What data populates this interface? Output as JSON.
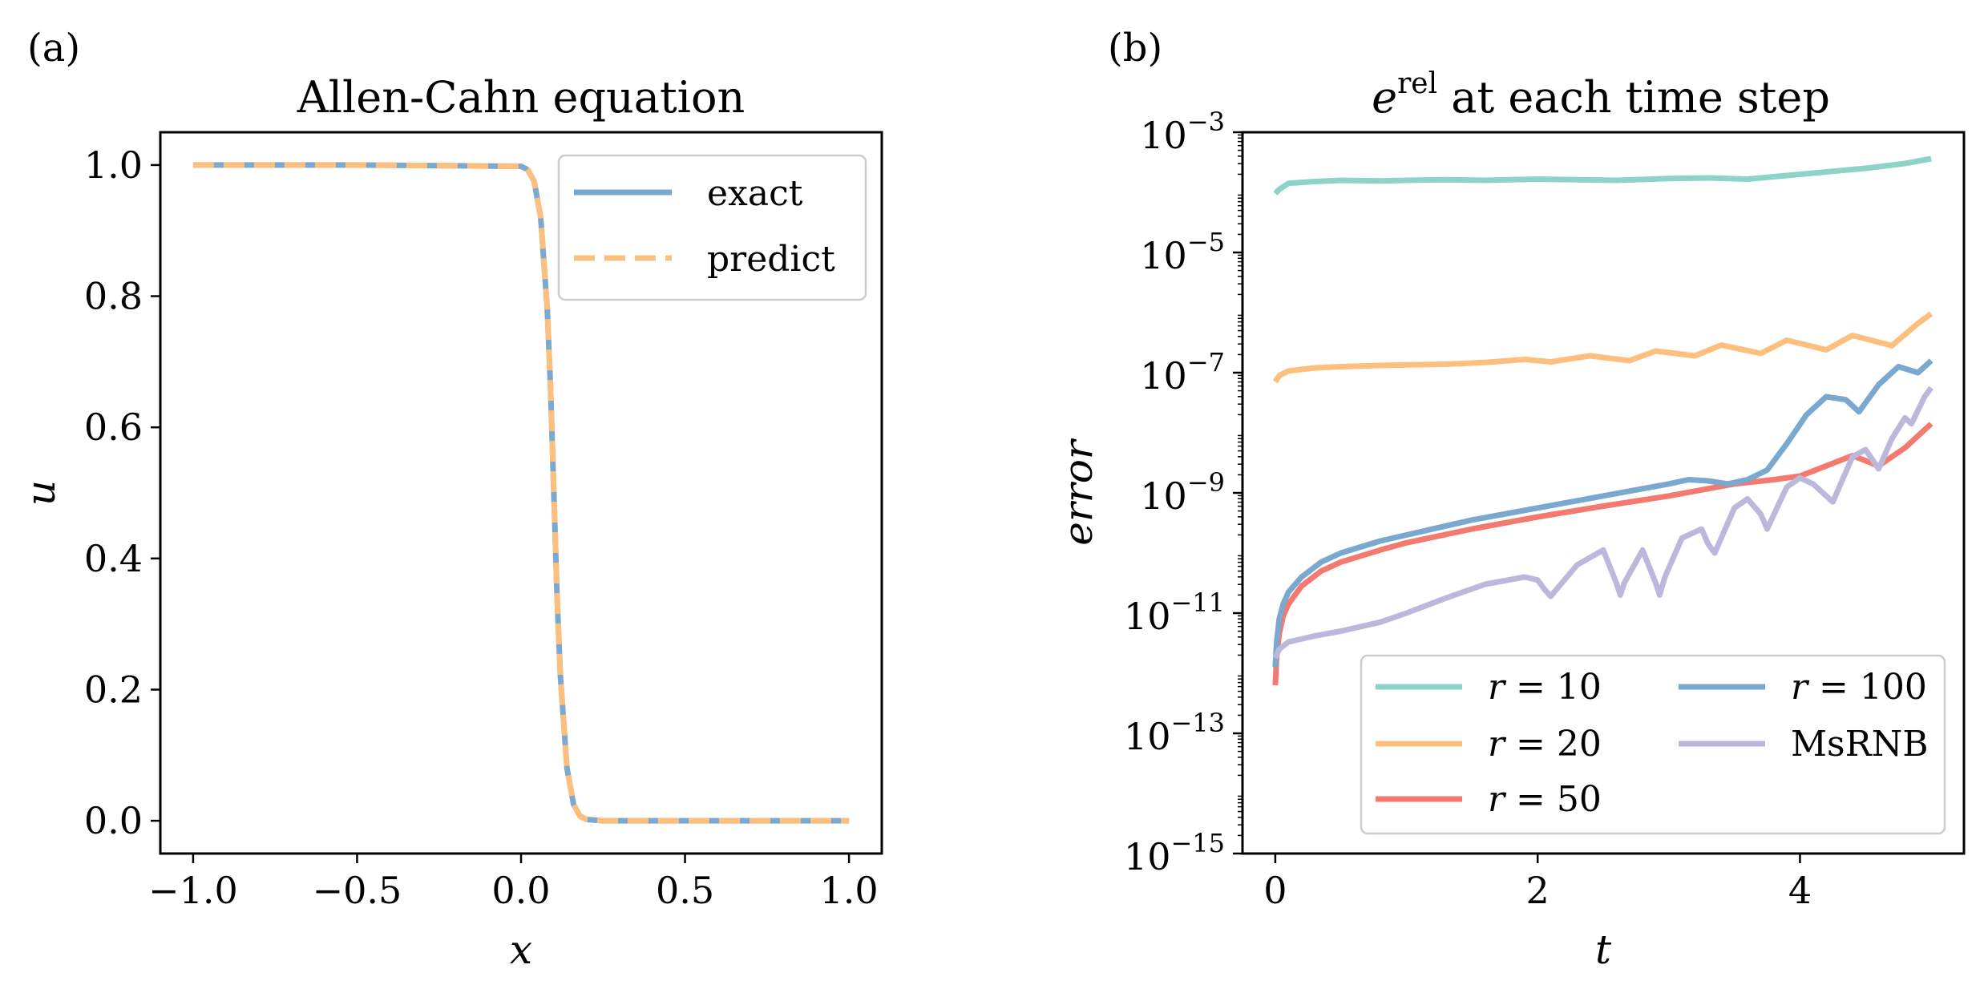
{
  "panel_labels": {
    "a": "(a)",
    "b": "(b)"
  },
  "chart_data": [
    {
      "type": "line",
      "title": "Allen-Cahn equation",
      "xlabel": "x",
      "ylabel": "u",
      "xlim": [
        -1.1,
        1.1
      ],
      "ylim": [
        -0.05,
        1.05
      ],
      "xticks": [
        -1.0,
        -0.5,
        0.0,
        0.5,
        1.0
      ],
      "xtick_labels": [
        "−1.0",
        "−0.5",
        "0.0",
        "0.5",
        "1.0"
      ],
      "yticks": [
        0.0,
        0.2,
        0.4,
        0.6,
        0.8,
        1.0
      ],
      "ytick_labels": [
        "0.0",
        "0.2",
        "0.4",
        "0.6",
        "0.8",
        "1.0"
      ],
      "legend_position": "upper right",
      "series": [
        {
          "name": "exact",
          "color": "#7ba8cf",
          "style": "solid",
          "x": [
            -1.0,
            -0.5,
            0.0,
            0.02,
            0.04,
            0.06,
            0.08,
            0.09,
            0.1,
            0.11,
            0.12,
            0.14,
            0.16,
            0.18,
            0.2,
            0.25,
            0.5,
            1.0
          ],
          "y": [
            1.0,
            1.0,
            0.998,
            0.993,
            0.975,
            0.92,
            0.78,
            0.66,
            0.5,
            0.34,
            0.22,
            0.08,
            0.025,
            0.007,
            0.002,
            0.0,
            0.0,
            0.0
          ]
        },
        {
          "name": "predict",
          "color": "#fdbf7d",
          "style": "dashed",
          "x": [
            -1.0,
            -0.5,
            0.0,
            0.02,
            0.04,
            0.06,
            0.08,
            0.09,
            0.1,
            0.11,
            0.12,
            0.14,
            0.16,
            0.18,
            0.2,
            0.25,
            0.5,
            1.0
          ],
          "y": [
            1.0,
            1.0,
            0.998,
            0.993,
            0.975,
            0.92,
            0.78,
            0.66,
            0.5,
            0.34,
            0.22,
            0.08,
            0.025,
            0.007,
            0.002,
            0.0,
            0.0,
            0.0
          ]
        }
      ]
    },
    {
      "type": "line",
      "title_main": "e",
      "title_sup": "rel",
      "title_rest": " at each time step",
      "xlabel": "t",
      "ylabel": "error",
      "yscale": "log",
      "xlim": [
        -0.25,
        5.25
      ],
      "ylim_exp": [
        -15,
        -3
      ],
      "xticks": [
        0,
        2,
        4
      ],
      "xtick_labels": [
        "0",
        "2",
        "4"
      ],
      "ytick_exps": [
        -3,
        -5,
        -7,
        -9,
        -11,
        -13,
        -15
      ],
      "ytick_base": "10",
      "ytick_sup": [
        "−3",
        "−5",
        "−7",
        "−9",
        "−11",
        "−13",
        "−15"
      ],
      "legend_position": "lower right",
      "series": [
        {
          "name": "r = 10",
          "legend_var": "r",
          "legend_rest": " = 10",
          "color": "#8dd3c7",
          "t": [
            0.0,
            0.03,
            0.1,
            0.3,
            0.5,
            0.8,
            1.0,
            1.3,
            1.6,
            2.0,
            2.3,
            2.6,
            3.0,
            3.3,
            3.6,
            3.9,
            4.2,
            4.5,
            4.8,
            5.0
          ],
          "log10e": [
            -4.02,
            -3.95,
            -3.85,
            -3.82,
            -3.8,
            -3.81,
            -3.8,
            -3.79,
            -3.8,
            -3.78,
            -3.79,
            -3.8,
            -3.77,
            -3.76,
            -3.78,
            -3.72,
            -3.66,
            -3.6,
            -3.52,
            -3.44
          ]
        },
        {
          "name": "r = 20",
          "legend_var": "r",
          "legend_rest": " = 20",
          "color": "#fdbf7d",
          "t": [
            0.0,
            0.03,
            0.1,
            0.3,
            0.5,
            0.8,
            1.0,
            1.3,
            1.6,
            1.9,
            2.1,
            2.4,
            2.7,
            2.9,
            3.2,
            3.4,
            3.7,
            3.9,
            4.2,
            4.4,
            4.7,
            4.9,
            5.0
          ],
          "log10e": [
            -7.15,
            -7.05,
            -6.97,
            -6.92,
            -6.9,
            -6.88,
            -6.87,
            -6.86,
            -6.83,
            -6.78,
            -6.82,
            -6.72,
            -6.8,
            -6.64,
            -6.72,
            -6.54,
            -6.68,
            -6.46,
            -6.62,
            -6.38,
            -6.55,
            -6.18,
            -6.02
          ]
        },
        {
          "name": "r = 50",
          "legend_var": "r",
          "legend_rest": " = 50",
          "color": "#f4796e",
          "t": [
            0.0,
            0.01,
            0.03,
            0.06,
            0.1,
            0.2,
            0.35,
            0.5,
            0.8,
            1.0,
            1.5,
            2.0,
            2.5,
            3.0,
            3.5,
            3.8,
            4.0,
            4.2,
            4.4,
            4.6,
            4.8,
            4.9,
            5.0
          ],
          "log10e": [
            -12.2,
            -11.75,
            -11.35,
            -11.05,
            -10.85,
            -10.55,
            -10.3,
            -10.15,
            -9.95,
            -9.83,
            -9.6,
            -9.4,
            -9.22,
            -9.05,
            -8.85,
            -8.78,
            -8.72,
            -8.55,
            -8.38,
            -8.55,
            -8.25,
            -8.05,
            -7.85
          ]
        },
        {
          "name": "r = 100",
          "legend_var": "r",
          "legend_rest": " = 100",
          "color": "#7ba8cf",
          "t": [
            0.0,
            0.01,
            0.03,
            0.06,
            0.1,
            0.2,
            0.35,
            0.5,
            0.8,
            1.0,
            1.5,
            2.0,
            2.5,
            3.0,
            3.15,
            3.3,
            3.45,
            3.6,
            3.75,
            3.9,
            4.05,
            4.2,
            4.35,
            4.45,
            4.6,
            4.75,
            4.9,
            5.0
          ],
          "log10e": [
            -11.9,
            -11.5,
            -11.1,
            -10.85,
            -10.65,
            -10.4,
            -10.15,
            -10.0,
            -9.8,
            -9.7,
            -9.45,
            -9.25,
            -9.05,
            -8.85,
            -8.78,
            -8.8,
            -8.85,
            -8.78,
            -8.62,
            -8.18,
            -7.7,
            -7.4,
            -7.45,
            -7.65,
            -7.2,
            -6.9,
            -7.0,
            -6.8
          ]
        },
        {
          "name": "MsRNB",
          "legend_var": "",
          "legend_rest": "MsRNB",
          "color": "#bcb8dc",
          "t": [
            0.0,
            0.03,
            0.1,
            0.3,
            0.5,
            0.8,
            1.0,
            1.3,
            1.6,
            1.9,
            2.0,
            2.05,
            2.1,
            2.3,
            2.5,
            2.6,
            2.63,
            2.66,
            2.8,
            2.9,
            2.93,
            2.97,
            3.1,
            3.25,
            3.3,
            3.35,
            3.5,
            3.6,
            3.7,
            3.75,
            3.9,
            4.0,
            4.1,
            4.2,
            4.25,
            4.4,
            4.5,
            4.6,
            4.7,
            4.8,
            4.85,
            4.95,
            5.0
          ],
          "log10e": [
            -11.75,
            -11.6,
            -11.48,
            -11.38,
            -11.3,
            -11.15,
            -11.0,
            -10.75,
            -10.52,
            -10.4,
            -10.45,
            -10.6,
            -10.72,
            -10.2,
            -9.95,
            -10.5,
            -10.7,
            -10.5,
            -9.95,
            -10.5,
            -10.7,
            -10.4,
            -9.75,
            -9.6,
            -9.85,
            -10.0,
            -9.25,
            -9.1,
            -9.35,
            -9.6,
            -8.9,
            -8.75,
            -8.85,
            -9.05,
            -9.15,
            -8.4,
            -8.28,
            -8.6,
            -8.1,
            -7.75,
            -7.85,
            -7.4,
            -7.25
          ]
        }
      ]
    }
  ]
}
